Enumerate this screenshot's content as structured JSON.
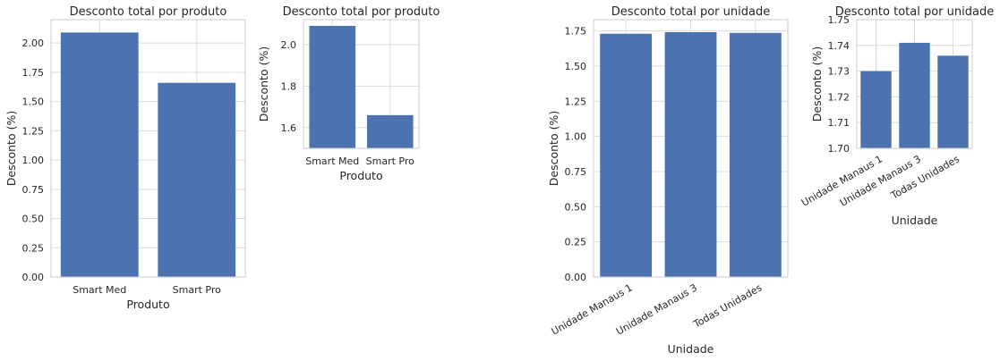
{
  "chart_data": [
    {
      "type": "bar",
      "title": "Desconto total por produto",
      "xlabel": "Produto",
      "ylabel": "Desconto (%)",
      "categories": [
        "Smart Med",
        "Smart Pro"
      ],
      "values": [
        2.09,
        1.66
      ],
      "ylim": [
        0,
        2.2
      ],
      "yticks": [
        0.0,
        0.25,
        0.5,
        0.75,
        1.0,
        1.25,
        1.5,
        1.75,
        2.0
      ],
      "ytick_labels": [
        "0.00",
        "0.25",
        "0.50",
        "0.75",
        "1.00",
        "1.25",
        "1.50",
        "1.75",
        "2.00"
      ],
      "grid": true,
      "color": "#4c72b0",
      "xtick_rotation": 0
    },
    {
      "type": "bar",
      "title": "Desconto total por produto",
      "xlabel": "Produto",
      "ylabel": "Desconto (%)",
      "categories": [
        "Smart Med",
        "Smart Pro"
      ],
      "values": [
        2.09,
        1.66
      ],
      "ylim": [
        1.5,
        2.12
      ],
      "yticks": [
        1.6,
        1.8,
        2.0
      ],
      "ytick_labels": [
        "1.6",
        "1.8",
        "2.0"
      ],
      "grid": true,
      "color": "#4c72b0",
      "xtick_rotation": 0
    },
    {
      "type": "bar",
      "title": "Desconto total por unidade",
      "xlabel": "Unidade",
      "ylabel": "Desconto (%)",
      "categories": [
        "Unidade Manaus 1",
        "Unidade Manaus 3",
        "Todas Unidades"
      ],
      "values": [
        1.73,
        1.741,
        1.736
      ],
      "ylim": [
        0,
        1.83
      ],
      "yticks": [
        0.0,
        0.25,
        0.5,
        0.75,
        1.0,
        1.25,
        1.5,
        1.75
      ],
      "ytick_labels": [
        "0.00",
        "0.25",
        "0.50",
        "0.75",
        "1.00",
        "1.25",
        "1.50",
        "1.75"
      ],
      "grid": true,
      "color": "#4c72b0",
      "xtick_rotation": -30
    },
    {
      "type": "bar",
      "title": "Desconto total por unidade",
      "xlabel": "Unidade",
      "ylabel": "Desconto (%)",
      "categories": [
        "Unidade Manaus 1",
        "Unidade Manaus 3",
        "Todas Unidades"
      ],
      "values": [
        1.73,
        1.741,
        1.736
      ],
      "ylim": [
        1.7,
        1.75
      ],
      "yticks": [
        1.7,
        1.71,
        1.72,
        1.73,
        1.74,
        1.75
      ],
      "ytick_labels": [
        "1.70",
        "1.71",
        "1.72",
        "1.73",
        "1.74",
        "1.75"
      ],
      "grid": true,
      "color": "#4c72b0",
      "xtick_rotation": -30
    }
  ]
}
